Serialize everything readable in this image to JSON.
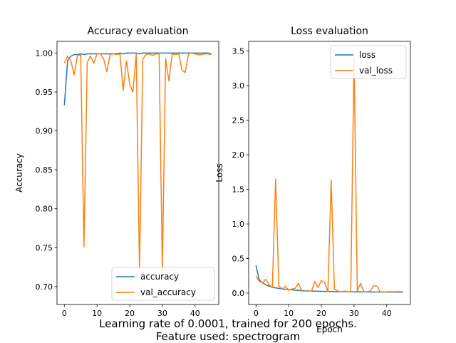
{
  "caption": {
    "line1": "Learning rate of 0.0001, trained for 200 epochs.",
    "line2": "Feature used: spectrogram"
  },
  "colors": {
    "series1": "#1f77b4",
    "series2": "#ff7f0e"
  },
  "chart_data": [
    {
      "type": "line",
      "title": "Accuracy evaluation",
      "xlabel": "",
      "ylabel": "Accuracy",
      "xlim": [
        -2.25,
        47.25
      ],
      "ylim": [
        0.677,
        1.015
      ],
      "xticks": [
        0,
        10,
        20,
        30,
        40
      ],
      "yticks": [
        0.7,
        0.75,
        0.8,
        0.85,
        0.9,
        0.95,
        1.0
      ],
      "ytick_labels": [
        "0.70",
        "0.75",
        "0.80",
        "0.85",
        "0.90",
        "0.95",
        "1.00"
      ],
      "legend": "lower-right",
      "grid": false,
      "series": [
        {
          "name": "accuracy",
          "values": [
            0.933,
            0.99,
            0.996,
            0.998,
            0.998,
            0.999,
            0.998,
            0.999,
            0.999,
            0.999,
            0.999,
            0.999,
            0.999,
            0.999,
            0.999,
            0.999,
            0.999,
            1.0,
            0.999,
            1.0,
            1.0,
            1.0,
            1.0,
            0.999,
            1.0,
            1.0,
            1.0,
            1.0,
            1.0,
            1.0,
            1.0,
            1.0,
            1.0,
            1.0,
            1.0,
            1.0,
            1.0,
            1.0,
            1.0,
            1.0,
            1.0,
            1.0,
            1.0,
            1.0,
            1.0,
            0.999
          ]
        },
        {
          "name": "val_accuracy",
          "values": [
            0.987,
            0.996,
            0.99,
            0.972,
            0.996,
            0.998,
            0.751,
            0.988,
            0.996,
            0.987,
            0.999,
            0.999,
            0.993,
            0.976,
            0.998,
            0.999,
            0.998,
            0.999,
            0.952,
            0.99,
            0.96,
            0.95,
            0.999,
            0.722,
            0.992,
            0.998,
            0.999,
            0.997,
            0.999,
            0.999,
            0.722,
            0.993,
            0.964,
            0.999,
            0.998,
            0.999,
            0.978,
            0.975,
            0.999,
            1.0,
            0.999,
            0.998,
            0.998,
            0.999,
            0.999,
            0.998
          ]
        }
      ]
    },
    {
      "type": "line",
      "title": "Loss evaluation",
      "xlabel": "Epoch",
      "ylabel": "Loss",
      "xlim": [
        -2.25,
        47.25
      ],
      "ylim": [
        -0.165,
        3.64
      ],
      "xticks": [
        0,
        10,
        20,
        30,
        40
      ],
      "yticks": [
        0.0,
        0.5,
        1.0,
        1.5,
        2.0,
        2.5,
        3.0,
        3.5
      ],
      "ytick_labels": [
        "0.0",
        "0.5",
        "1.0",
        "1.5",
        "2.0",
        "2.5",
        "3.0",
        "3.5"
      ],
      "legend": "upper-right",
      "grid": false,
      "series": [
        {
          "name": "loss",
          "values": [
            0.4,
            0.19,
            0.15,
            0.12,
            0.1,
            0.085,
            0.075,
            0.068,
            0.06,
            0.055,
            0.05,
            0.046,
            0.042,
            0.039,
            0.036,
            0.034,
            0.032,
            0.03,
            0.028,
            0.027,
            0.026,
            0.025,
            0.024,
            0.023,
            0.022,
            0.021,
            0.02,
            0.02,
            0.019,
            0.019,
            0.018,
            0.018,
            0.017,
            0.017,
            0.017,
            0.016,
            0.016,
            0.016,
            0.015,
            0.015,
            0.015,
            0.015,
            0.015,
            0.014,
            0.014,
            0.014
          ]
        },
        {
          "name": "val_loss",
          "values": [
            0.25,
            0.17,
            0.15,
            0.2,
            0.12,
            0.08,
            1.65,
            0.1,
            0.06,
            0.1,
            0.04,
            0.06,
            0.07,
            0.14,
            0.03,
            0.03,
            0.03,
            0.03,
            0.17,
            0.08,
            0.18,
            0.15,
            0.02,
            1.63,
            0.06,
            0.03,
            0.02,
            0.03,
            0.02,
            0.02,
            3.42,
            0.03,
            0.14,
            0.02,
            0.02,
            0.03,
            0.11,
            0.1,
            0.02,
            0.01,
            0.02,
            0.02,
            0.02,
            0.02,
            0.02,
            0.02
          ]
        }
      ]
    }
  ]
}
